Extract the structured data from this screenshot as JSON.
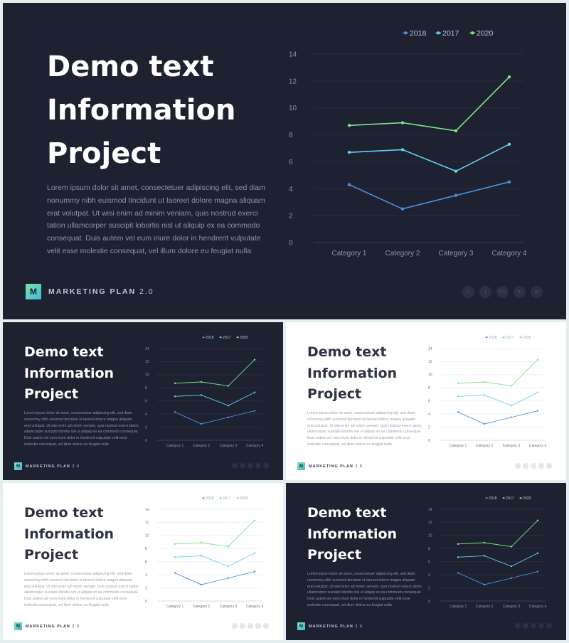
{
  "slide": {
    "title_lines": [
      "Demo text",
      "Information",
      "Project"
    ],
    "body": "Lorem ipsum dolor sit amet, consectetuer adipiscing elit, sed diam nonummy nibh euismod tincidunt ut laoreet dolore magna aliquam erat volutpat. Ut wisi enim ad minim veniam, quis nostrud exerci tation ullamcorper suscipit lobortis nisl ut aliquip ex ea commodo consequat. Duis autem vel eum iriure dolor in hendrerit vulputate velit esse molestie consequat, vel illum dolore eu feugiat nulla",
    "logo_letter": "M",
    "logo_text": "MARKETING PLAN",
    "logo_version": "2.0",
    "social_icons": [
      "facebook-icon",
      "twitter-icon",
      "google-plus-icon",
      "linkedin-icon",
      "instagram-icon"
    ],
    "social_glyphs": [
      "f",
      "t",
      "G+",
      "in",
      "◘"
    ]
  },
  "themes": {
    "dark": {
      "background": "#1e2130",
      "title": "#ffffff"
    },
    "light": {
      "background": "#ffffff",
      "title": "#2d3142"
    }
  },
  "chart_data": {
    "type": "line",
    "categories": [
      "Category 1",
      "Category 2",
      "Category 3",
      "Category 4"
    ],
    "series": [
      {
        "name": "2018",
        "values": [
          4.3,
          2.5,
          3.5,
          4.5
        ],
        "color": "#4a90e2"
      },
      {
        "name": "2017",
        "values": [
          6.7,
          6.9,
          5.3,
          7.3
        ],
        "color": "#5fd3ea"
      },
      {
        "name": "2020",
        "values": [
          8.7,
          8.9,
          8.3,
          12.3
        ],
        "color": "#7fe38e"
      }
    ],
    "ylim": [
      0,
      14
    ],
    "yticks": [
      0,
      2,
      4,
      6,
      8,
      10,
      12,
      14
    ],
    "legend": "top-right",
    "grid": true
  },
  "variants": [
    {
      "name": "main-dark",
      "theme": "dark"
    },
    {
      "name": "thumb-dark-1",
      "theme": "dark"
    },
    {
      "name": "thumb-light-1",
      "theme": "light"
    },
    {
      "name": "thumb-light-2",
      "theme": "light"
    },
    {
      "name": "thumb-dark-2",
      "theme": "dark"
    }
  ]
}
